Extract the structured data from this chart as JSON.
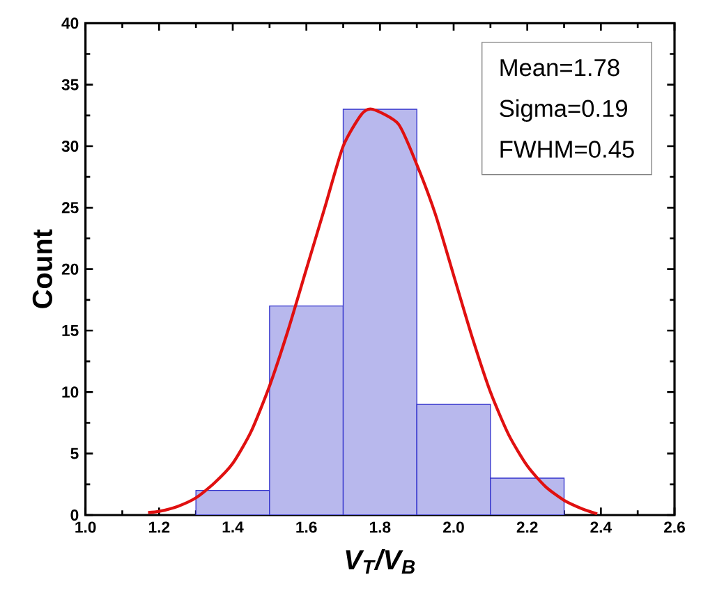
{
  "chart_data": {
    "type": "histogram",
    "xlabel": "V$_{T}$/V$_{B}$",
    "ylabel": "Count",
    "bins": [
      1.3,
      1.5,
      1.7,
      1.9,
      2.1,
      2.3
    ],
    "series": [
      {
        "color": "#3333cc",
        "values": [
          2,
          17,
          33,
          9,
          3
        ]
      },
      {
        "type": "line",
        "color": "#e01010",
        "x": [
          1.17,
          1.2,
          1.25,
          1.3,
          1.35,
          1.4,
          1.45,
          1.5,
          1.55,
          1.6,
          1.65,
          1.7,
          1.75,
          1.78,
          1.85,
          1.9,
          1.95,
          2.0,
          2.05,
          2.1,
          2.15,
          2.2,
          2.25,
          2.3,
          2.35,
          2.39
        ],
        "values": [
          0.2,
          0.3,
          0.7,
          1.4,
          2.6,
          4.2,
          6.8,
          10.5,
          15,
          20,
          25,
          30,
          32.6,
          33,
          31.8,
          28.5,
          24.5,
          19.5,
          14.5,
          10,
          6.5,
          4,
          2.3,
          1.2,
          0.5,
          0.1
        ]
      }
    ],
    "xlim": [
      1.0,
      2.6
    ],
    "xticks": [
      {
        "value": 1.0,
        "label": "1.0"
      },
      1.2,
      1.4,
      1.6,
      1.8,
      {
        "value": 2.0,
        "label": "2.0"
      },
      2.2,
      2.4,
      2.6
    ],
    "ylim": [
      0,
      40
    ],
    "yticks": [
      0,
      5,
      10,
      15,
      20,
      25,
      30,
      35,
      40
    ],
    "annotations": [
      "Mean=1.78",
      "Sigma=0.19",
      "FWHM=0.45"
    ],
    "grid": false
  }
}
